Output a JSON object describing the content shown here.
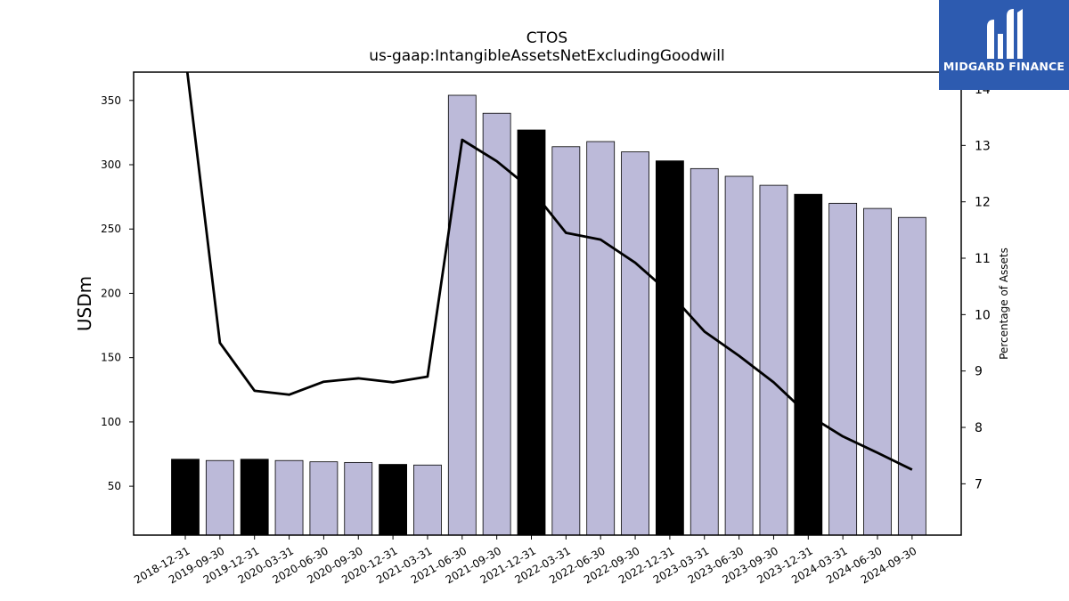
{
  "chart_data": {
    "type": "bar",
    "title": "CTOS",
    "subtitle": "us-gaap:IntangibleAssetsNetExcludingGoodwill",
    "ylabel": "USDm",
    "ylabel_right": "Percentage of Assets",
    "categories": [
      "2018-12-31",
      "2019-09-30",
      "2019-12-31",
      "2020-03-31",
      "2020-06-30",
      "2020-09-30",
      "2020-12-31",
      "2021-03-31",
      "2021-06-30",
      "2021-09-30",
      "2021-12-31",
      "2022-03-31",
      "2022-06-30",
      "2022-09-30",
      "2022-12-31",
      "2023-03-31",
      "2023-06-30",
      "2023-09-30",
      "2023-12-31",
      "2024-03-31",
      "2024-06-30",
      "2024-09-30"
    ],
    "series": [
      {
        "type": "bar",
        "axis": "left",
        "values": [
          71,
          70,
          71,
          70,
          69,
          68.5,
          67,
          66.5,
          354,
          340,
          327,
          314,
          318,
          310,
          303,
          297,
          291,
          284,
          277,
          270,
          266,
          259
        ],
        "highlight": [
          true,
          false,
          true,
          false,
          false,
          false,
          true,
          false,
          false,
          false,
          true,
          false,
          false,
          false,
          true,
          false,
          false,
          false,
          true,
          false,
          false,
          false
        ]
      },
      {
        "type": "line",
        "axis": "right",
        "values": [
          14.6,
          9.5,
          8.65,
          8.58,
          8.81,
          8.87,
          8.8,
          8.9,
          13.1,
          12.72,
          12.22,
          11.45,
          11.33,
          10.92,
          10.38,
          9.7,
          9.27,
          8.8,
          8.22,
          7.84,
          7.55,
          7.25
        ]
      }
    ],
    "ylim": [
      12,
      372
    ],
    "yticks": [
      50,
      100,
      150,
      200,
      250,
      300,
      350
    ],
    "ylim_right": [
      6.09,
      14.3
    ],
    "yticks_right": [
      7,
      8,
      9,
      10,
      11,
      12,
      13,
      14
    ],
    "colors": {
      "bar": "#bcbad9",
      "bar_highlight": "#000000",
      "line": "#000000"
    },
    "grid": false
  },
  "logo": {
    "text": "MIDGARD FINANCE",
    "background": "#2d5bb0"
  }
}
